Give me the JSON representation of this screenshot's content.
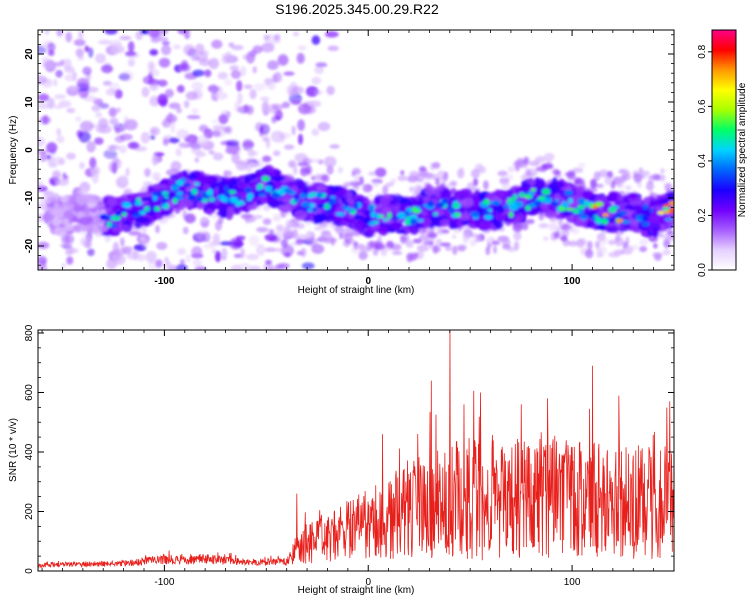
{
  "chart_data": [
    {
      "type": "heatmap",
      "title": "S196.2025.345.00.29.R22",
      "xlabel": "Height of straight line (km)",
      "ylabel": "Frequency (Hz)",
      "xlim": [
        -162,
        150
      ],
      "ylim": [
        -25,
        25
      ],
      "xticks": [
        -100,
        0,
        100
      ],
      "xtick_labels": [
        "-100",
        "0",
        "100"
      ],
      "yticks": [
        -20,
        -10,
        0,
        10,
        20
      ],
      "ytick_labels": [
        "-20",
        "-10",
        "0",
        "10",
        "20"
      ],
      "ridge": {
        "x": [
          -162,
          -140,
          -125,
          -110,
          -100,
          -90,
          -80,
          -70,
          -60,
          -50,
          -40,
          -30,
          -20,
          -10,
          0,
          10,
          20,
          30,
          40,
          50,
          60,
          70,
          80,
          90,
          100,
          110,
          120,
          130,
          140,
          150
        ],
        "frequency": [
          -14,
          -13,
          -14,
          -12,
          -10,
          -8,
          -9,
          -10,
          -9,
          -7,
          -9,
          -11,
          -11,
          -12,
          -14,
          -13,
          -14,
          -12,
          -12,
          -12,
          -13,
          -12,
          -10,
          -10,
          -11,
          -13,
          -13,
          -13,
          -14,
          -12
        ]
      },
      "colorbar": {
        "label": "Normalized spectral amplitude",
        "range": [
          0,
          0.88
        ],
        "ticks": [
          0.0,
          0.2,
          0.4,
          0.6,
          0.8
        ],
        "tick_labels": [
          "0.0",
          "0.2",
          "0.4",
          "0.6",
          "0.8"
        ],
        "colors": [
          "#ffffff",
          "#e6d0ff",
          "#a55cff",
          "#7000ff",
          "#1a00ff",
          "#0066ff",
          "#00d4ff",
          "#00ff66",
          "#a8ff00",
          "#ffff00",
          "#ff9900",
          "#ff0000",
          "#ff0088"
        ]
      }
    },
    {
      "type": "line",
      "title": "",
      "xlabel": "Height of straight line (km)",
      "ylabel": "SNR (10 * v/v)",
      "xlim": [
        -162,
        150
      ],
      "ylim": [
        0,
        810
      ],
      "xticks": [
        -100,
        0,
        100
      ],
      "xtick_labels": [
        "-100",
        "0",
        "100"
      ],
      "yticks": [
        0,
        200,
        400,
        600,
        800
      ],
      "ytick_labels": [
        "0",
        "200",
        "400",
        "600",
        "800"
      ],
      "color": "#e8201c",
      "envelope": {
        "x": [
          -162,
          -120,
          -100,
          -80,
          -60,
          -40,
          -35,
          -30,
          -20,
          -10,
          0,
          10,
          20,
          30,
          40,
          50,
          60,
          70,
          80,
          90,
          100,
          110,
          120,
          130,
          140,
          150
        ],
        "mean": [
          20,
          25,
          40,
          40,
          30,
          30,
          80,
          90,
          110,
          140,
          160,
          180,
          200,
          220,
          230,
          250,
          240,
          240,
          250,
          250,
          240,
          245,
          250,
          240,
          255,
          250
        ],
        "spread": [
          8,
          10,
          18,
          18,
          12,
          12,
          60,
          70,
          80,
          100,
          120,
          140,
          170,
          190,
          200,
          220,
          200,
          200,
          210,
          220,
          200,
          200,
          210,
          200,
          220,
          200
        ]
      },
      "peaks": [
        {
          "x": -35,
          "y": 260
        },
        {
          "x": 7,
          "y": 460
        },
        {
          "x": 31,
          "y": 640
        },
        {
          "x": 40,
          "y": 810
        },
        {
          "x": 47,
          "y": 560
        },
        {
          "x": 55,
          "y": 600
        },
        {
          "x": 75,
          "y": 560
        },
        {
          "x": 88,
          "y": 580
        },
        {
          "x": 110,
          "y": 690
        },
        {
          "x": 148,
          "y": 570
        }
      ]
    }
  ]
}
